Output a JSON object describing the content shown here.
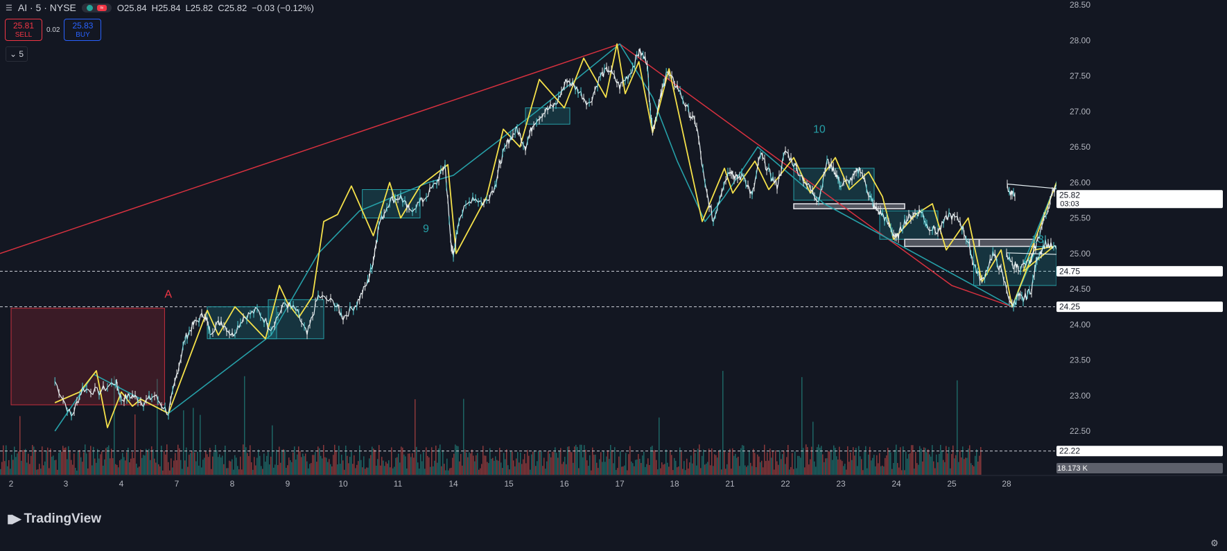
{
  "header": {
    "symbol": "AI · 5 · NYSE",
    "open": "O25.84",
    "high": "H25.84",
    "low": "L25.82",
    "close": "C25.82",
    "change": "−0.03 (−0.12%)"
  },
  "trade": {
    "sell_price": "25.81",
    "sell_label": "SELL",
    "spread": "0.02",
    "buy_price": "25.83",
    "buy_label": "BUY"
  },
  "interval": "5",
  "logo_text": "TradingView",
  "colors": {
    "background": "#131722",
    "zigzag_yellow": "#f5e14a",
    "zigzag_teal": "#26a0a8",
    "trendline_red": "#d8313f",
    "up": "#26a69a",
    "down": "#ef5350"
  },
  "chart_data": {
    "type": "line",
    "y_axis": {
      "min": 21.6,
      "max": 28.5,
      "ticks": [
        "28.50",
        "28.00",
        "27.50",
        "27.00",
        "26.50",
        "26.00",
        "25.50",
        "25.00",
        "24.50",
        "24.00",
        "23.50",
        "23.00",
        "22.50"
      ]
    },
    "x_axis": {
      "ticks": [
        "2",
        "3",
        "4",
        "7",
        "8",
        "9",
        "10",
        "11",
        "14",
        "15",
        "16",
        "17",
        "18",
        "21",
        "22",
        "23",
        "24",
        "25",
        "28"
      ]
    },
    "price_labels": [
      {
        "value": 25.82,
        "text": "25.82",
        "sub": "03:03"
      },
      {
        "value": 24.75,
        "text": "24.75"
      },
      {
        "value": 24.25,
        "text": "24.25"
      },
      {
        "value": 22.22,
        "text": "22.22"
      }
    ],
    "volume_label": "18.173 K",
    "horizontal_levels": [
      24.75,
      24.25,
      22.22
    ],
    "annotations": [
      {
        "text": "A",
        "x": 3.78,
        "y": 24.38
      },
      {
        "text": "9",
        "x": 8.45,
        "y": 25.3
      },
      {
        "text": "10",
        "x": 15.5,
        "y": 26.7
      },
      {
        "text": "13",
        "x": 24.45,
        "y": 25.15
      }
    ],
    "price_path": [
      [
        1.8,
        23.2
      ],
      [
        2.1,
        22.7
      ],
      [
        2.3,
        23.1
      ],
      [
        2.6,
        23.05
      ],
      [
        2.9,
        23.2
      ],
      [
        3.0,
        22.95
      ],
      [
        3.2,
        23.0
      ],
      [
        3.4,
        22.9
      ],
      [
        3.6,
        23.0
      ],
      [
        3.85,
        22.75
      ],
      [
        4.0,
        23.3
      ],
      [
        4.15,
        23.8
      ],
      [
        4.3,
        24.0
      ],
      [
        4.5,
        24.15
      ],
      [
        4.6,
        23.9
      ],
      [
        4.8,
        24.05
      ],
      [
        5.0,
        23.85
      ],
      [
        5.2,
        24.1
      ],
      [
        5.45,
        24.2
      ],
      [
        5.7,
        23.95
      ],
      [
        5.95,
        24.3
      ],
      [
        6.15,
        24.2
      ],
      [
        6.35,
        23.85
      ],
      [
        6.55,
        24.4
      ],
      [
        6.85,
        24.3
      ],
      [
        7.0,
        24.1
      ],
      [
        7.25,
        24.3
      ],
      [
        7.45,
        24.6
      ],
      [
        7.55,
        24.9
      ],
      [
        7.65,
        25.4
      ],
      [
        7.85,
        25.75
      ],
      [
        8.05,
        25.8
      ],
      [
        8.2,
        25.6
      ],
      [
        8.45,
        25.75
      ],
      [
        8.7,
        26.0
      ],
      [
        8.85,
        26.25
      ],
      [
        8.95,
        25.2
      ],
      [
        9.0,
        24.95
      ],
      [
        9.1,
        25.5
      ],
      [
        9.35,
        25.8
      ],
      [
        9.55,
        25.7
      ],
      [
        9.75,
        25.95
      ],
      [
        9.85,
        26.3
      ],
      [
        10.0,
        26.6
      ],
      [
        10.15,
        26.75
      ],
      [
        10.3,
        26.5
      ],
      [
        10.45,
        26.85
      ],
      [
        10.65,
        27.0
      ],
      [
        10.85,
        27.1
      ],
      [
        11.05,
        27.45
      ],
      [
        11.25,
        27.3
      ],
      [
        11.45,
        27.1
      ],
      [
        11.65,
        27.5
      ],
      [
        11.8,
        27.6
      ],
      [
        12.0,
        27.35
      ],
      [
        12.2,
        27.55
      ],
      [
        12.35,
        27.85
      ],
      [
        12.5,
        27.7
      ],
      [
        12.55,
        27.1
      ],
      [
        12.6,
        26.75
      ],
      [
        12.75,
        27.2
      ],
      [
        12.85,
        27.55
      ],
      [
        13.05,
        27.35
      ],
      [
        13.25,
        27.0
      ],
      [
        13.4,
        26.8
      ],
      [
        13.55,
        25.95
      ],
      [
        13.7,
        25.45
      ],
      [
        13.85,
        25.9
      ],
      [
        14.0,
        26.2
      ],
      [
        14.1,
        26.05
      ],
      [
        14.25,
        26.1
      ],
      [
        14.4,
        25.8
      ],
      [
        14.55,
        26.4
      ],
      [
        14.7,
        26.15
      ],
      [
        14.85,
        25.95
      ],
      [
        15.0,
        26.45
      ],
      [
        15.2,
        26.2
      ],
      [
        15.45,
        25.9
      ],
      [
        15.6,
        25.75
      ],
      [
        15.75,
        26.3
      ],
      [
        15.9,
        26.15
      ],
      [
        16.0,
        25.95
      ],
      [
        16.2,
        26.05
      ],
      [
        16.35,
        26.2
      ],
      [
        16.5,
        25.85
      ],
      [
        16.6,
        25.65
      ],
      [
        16.75,
        25.55
      ],
      [
        16.9,
        25.35
      ],
      [
        17.0,
        25.2
      ],
      [
        17.15,
        25.45
      ],
      [
        17.3,
        25.55
      ],
      [
        17.45,
        25.6
      ],
      [
        17.55,
        25.4
      ],
      [
        17.75,
        25.3
      ],
      [
        17.95,
        25.55
      ],
      [
        18.15,
        25.45
      ],
      [
        18.3,
        25.15
      ],
      [
        18.4,
        24.85
      ],
      [
        18.55,
        24.6
      ],
      [
        18.75,
        25.0
      ],
      [
        18.9,
        24.75
      ],
      [
        19.1,
        24.25
      ],
      [
        19.2,
        24.4
      ],
      [
        19.3,
        24.35
      ],
      [
        19.45,
        24.5
      ],
      [
        19.55,
        24.95
      ],
      [
        19.7,
        25.15
      ],
      [
        19.9,
        25.05
      ],
      [
        20.1,
        24.85
      ],
      [
        20.25,
        24.8
      ],
      [
        20.45,
        24.9
      ],
      [
        20.6,
        25.3
      ],
      [
        20.75,
        25.65
      ],
      [
        20.9,
        26.0
      ],
      [
        21.05,
        25.9
      ],
      [
        21.15,
        25.8
      ]
    ],
    "zigzag_yellow": [
      [
        1.8,
        22.9
      ],
      [
        2.25,
        23.05
      ],
      [
        2.55,
        23.35
      ],
      [
        2.75,
        22.55
      ],
      [
        3.0,
        23.05
      ],
      [
        3.2,
        22.85
      ],
      [
        3.35,
        22.95
      ],
      [
        3.85,
        22.75
      ],
      [
        4.55,
        24.2
      ],
      [
        4.75,
        23.85
      ],
      [
        5.05,
        24.25
      ],
      [
        5.6,
        23.8
      ],
      [
        5.85,
        24.55
      ],
      [
        6.0,
        24.3
      ],
      [
        6.2,
        24.1
      ],
      [
        6.45,
        24.4
      ],
      [
        6.65,
        25.45
      ],
      [
        6.9,
        25.55
      ],
      [
        7.15,
        25.95
      ],
      [
        7.55,
        25.25
      ],
      [
        7.85,
        26.0
      ],
      [
        8.05,
        25.5
      ],
      [
        8.4,
        25.95
      ],
      [
        8.9,
        26.25
      ],
      [
        9.05,
        25.0
      ],
      [
        9.6,
        25.8
      ],
      [
        9.9,
        26.75
      ],
      [
        10.2,
        26.5
      ],
      [
        10.55,
        27.45
      ],
      [
        11.0,
        27.05
      ],
      [
        11.35,
        27.75
      ],
      [
        11.75,
        27.2
      ],
      [
        11.95,
        27.95
      ],
      [
        12.1,
        27.25
      ],
      [
        12.35,
        27.7
      ],
      [
        12.6,
        26.7
      ],
      [
        12.9,
        27.6
      ],
      [
        13.5,
        25.45
      ],
      [
        13.9,
        26.2
      ],
      [
        14.05,
        25.85
      ],
      [
        14.45,
        26.3
      ],
      [
        14.7,
        25.9
      ],
      [
        15.15,
        26.35
      ],
      [
        15.45,
        25.85
      ],
      [
        15.9,
        26.35
      ],
      [
        16.15,
        25.9
      ],
      [
        16.5,
        26.15
      ],
      [
        16.75,
        25.8
      ],
      [
        16.95,
        25.2
      ],
      [
        17.35,
        25.55
      ],
      [
        17.65,
        25.7
      ],
      [
        17.9,
        25.05
      ],
      [
        18.3,
        25.5
      ],
      [
        18.55,
        24.6
      ],
      [
        18.9,
        25.05
      ],
      [
        19.1,
        24.25
      ],
      [
        19.5,
        25.05
      ],
      [
        19.85,
        25.1
      ],
      [
        20.3,
        24.75
      ],
      [
        20.9,
        26.0
      ]
    ],
    "zigzag_teal": [
      [
        1.8,
        22.5
      ],
      [
        2.5,
        23.3
      ],
      [
        3.85,
        22.75
      ],
      [
        5.7,
        23.85
      ],
      [
        6.55,
        25.0
      ],
      [
        7.3,
        25.6
      ],
      [
        8.55,
        26.0
      ],
      [
        9.0,
        26.1
      ],
      [
        10.5,
        27.0
      ],
      [
        12.0,
        27.95
      ],
      [
        12.6,
        27.2
      ],
      [
        13.05,
        26.3
      ],
      [
        13.55,
        25.45
      ],
      [
        13.9,
        25.8
      ],
      [
        14.5,
        26.5
      ],
      [
        15.7,
        25.7
      ],
      [
        18.4,
        24.55
      ],
      [
        19.1,
        24.25
      ],
      [
        19.5,
        25.0
      ],
      [
        20.3,
        24.85
      ],
      [
        20.9,
        26.0
      ]
    ],
    "trendline_red": [
      [
        1.0,
        25.0
      ],
      [
        12.0,
        27.95
      ],
      [
        18.0,
        24.55
      ],
      [
        19.1,
        24.25
      ]
    ],
    "boxes_teal": [
      [
        4.55,
        5.8,
        24.25,
        23.8
      ],
      [
        5.65,
        6.65,
        24.35,
        23.8
      ],
      [
        7.35,
        8.4,
        25.9,
        25.5
      ],
      [
        10.3,
        11.1,
        27.05,
        26.82
      ],
      [
        15.15,
        16.6,
        26.2,
        25.75
      ],
      [
        16.7,
        17.75,
        25.6,
        25.2
      ],
      [
        18.4,
        19.9,
        25.1,
        24.55
      ]
    ],
    "boxes_white": [
      [
        15.15,
        17.15,
        25.7,
        25.63
      ],
      [
        17.15,
        18.5,
        25.2,
        25.1
      ],
      [
        18.5,
        19.5,
        25.2,
        25.1
      ]
    ],
    "box_red": [
      1.0,
      3.78,
      24.23,
      22.87
    ]
  }
}
